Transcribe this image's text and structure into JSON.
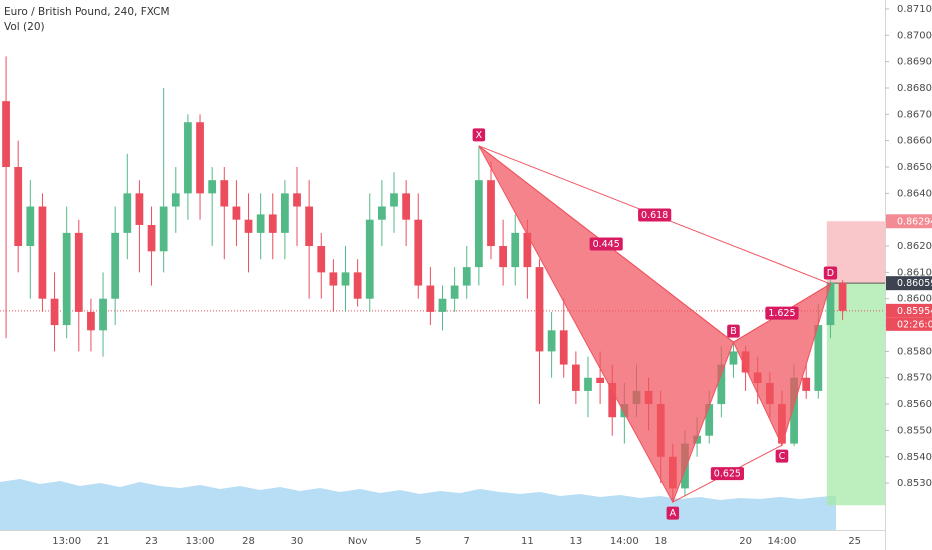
{
  "chart_data": {
    "type": "candlestick",
    "title": "Euro / British Pound, 240, FXCM",
    "subtitle": "Vol (20)",
    "categories": [
      null,
      null,
      null,
      null,
      null,
      "13:00",
      null,
      null,
      "21",
      null,
      null,
      null,
      "23",
      null,
      null,
      null,
      "13:00",
      null,
      null,
      null,
      "28",
      null,
      null,
      null,
      "30",
      null,
      null,
      null,
      null,
      "Nov",
      null,
      null,
      null,
      null,
      "5",
      null,
      null,
      null,
      "7",
      null,
      null,
      null,
      null,
      "11",
      null,
      null,
      null,
      "13",
      null,
      null,
      null,
      "14:00",
      null,
      null,
      "18",
      null,
      null,
      null,
      null,
      null,
      null,
      "20",
      null,
      null,
      "14:00",
      null,
      null,
      null,
      null,
      null,
      "25",
      null,
      null
    ],
    "open": [
      0.8675,
      0.865,
      0.862,
      0.8635,
      0.86,
      0.859,
      0.8625,
      0.8595,
      0.8588,
      0.86,
      0.8625,
      0.864,
      0.8628,
      0.8618,
      0.8635,
      0.864,
      0.8667,
      0.864,
      0.8645,
      0.8635,
      0.863,
      0.8625,
      0.8632,
      0.8625,
      0.864,
      0.8635,
      0.862,
      0.861,
      0.8605,
      0.861,
      0.86,
      0.863,
      0.8635,
      0.864,
      0.863,
      0.8605,
      0.8595,
      0.86,
      0.8605,
      0.8612,
      0.8645,
      0.862,
      0.8612,
      0.8625,
      0.8612,
      0.858,
      0.8588,
      0.8575,
      0.8565,
      0.857,
      0.8568,
      0.8555,
      0.856,
      0.8565,
      0.856,
      0.854,
      0.8528,
      0.8545,
      0.8548,
      0.856,
      0.8575,
      0.858,
      0.8572,
      0.8568,
      0.856,
      0.8545,
      0.857,
      0.8565,
      0.859,
      0.8606,
      null,
      null,
      null
    ],
    "high": [
      0.8692,
      0.866,
      0.8645,
      0.864,
      0.861,
      0.8635,
      0.863,
      0.86,
      0.861,
      0.8635,
      0.8655,
      0.8645,
      0.8635,
      0.868,
      0.865,
      0.867,
      0.867,
      0.865,
      0.865,
      0.8645,
      0.864,
      0.864,
      0.864,
      0.8645,
      0.865,
      0.8645,
      0.8625,
      0.8615,
      0.862,
      0.8615,
      0.864,
      0.8645,
      0.8648,
      0.8645,
      0.864,
      0.8612,
      0.8605,
      0.8612,
      0.862,
      0.8658,
      0.8652,
      0.863,
      0.8632,
      0.863,
      0.8615,
      0.8595,
      0.86,
      0.858,
      0.8578,
      0.858,
      0.8575,
      0.8568,
      0.8575,
      0.857,
      0.8565,
      0.8545,
      0.855,
      0.8555,
      0.8565,
      0.8582,
      0.8584,
      0.8582,
      0.8578,
      0.8572,
      0.8565,
      0.8575,
      0.8575,
      0.8598,
      0.8607,
      0.8607,
      null,
      null,
      null
    ],
    "low": [
      0.8585,
      0.861,
      0.86,
      0.8595,
      0.858,
      0.8585,
      0.858,
      0.858,
      0.8578,
      0.859,
      0.8615,
      0.861,
      0.8605,
      0.861,
      0.8625,
      0.863,
      0.863,
      0.862,
      0.8615,
      0.862,
      0.861,
      0.8615,
      0.8615,
      0.8615,
      0.862,
      0.86,
      0.86,
      0.8595,
      0.8595,
      0.8597,
      0.8595,
      0.862,
      0.8625,
      0.862,
      0.86,
      0.859,
      0.8588,
      0.8595,
      0.86,
      0.8605,
      0.8615,
      0.8605,
      0.8605,
      0.86,
      0.856,
      0.857,
      0.857,
      0.856,
      0.8555,
      0.856,
      0.8548,
      0.8545,
      0.8555,
      0.855,
      0.853,
      0.8523,
      0.8525,
      0.854,
      0.8545,
      0.8555,
      0.857,
      0.8565,
      0.856,
      0.8555,
      0.8544,
      0.8544,
      0.8562,
      0.8562,
      0.8585,
      0.8592,
      null,
      null,
      null
    ],
    "close": [
      0.865,
      0.862,
      0.8635,
      0.86,
      0.859,
      0.8625,
      0.8595,
      0.8588,
      0.86,
      0.8625,
      0.864,
      0.8628,
      0.8618,
      0.8635,
      0.864,
      0.8667,
      0.864,
      0.8645,
      0.8635,
      0.863,
      0.8625,
      0.8632,
      0.8625,
      0.864,
      0.8635,
      0.862,
      0.861,
      0.8605,
      0.861,
      0.86,
      0.863,
      0.8635,
      0.864,
      0.863,
      0.8605,
      0.8595,
      0.86,
      0.8605,
      0.8612,
      0.8645,
      0.862,
      0.8612,
      0.8625,
      0.8612,
      0.858,
      0.8588,
      0.8575,
      0.8565,
      0.857,
      0.8568,
      0.8555,
      0.856,
      0.8565,
      0.856,
      0.854,
      0.8528,
      0.8545,
      0.8548,
      0.856,
      0.8575,
      0.858,
      0.8572,
      0.8568,
      0.856,
      0.8545,
      0.857,
      0.8565,
      0.859,
      0.8606,
      0.85954,
      null,
      null,
      null
    ],
    "up_color": "#53b987",
    "down_color": "#eb4d5c",
    "ylim": [
      0.85122,
      0.87134
    ],
    "yticks": [
      {
        "value": 0.853,
        "label": "0.85300"
      },
      {
        "value": 0.854,
        "label": "0.85400"
      },
      {
        "value": 0.855,
        "label": "0.85500"
      },
      {
        "value": 0.856,
        "label": "0.85600"
      },
      {
        "value": 0.857,
        "label": "0.85700"
      },
      {
        "value": 0.858,
        "label": "0.85800"
      },
      {
        "value": 0.859,
        "label": "0.85900"
      },
      {
        "value": 0.86,
        "label": "0.86000"
      },
      {
        "value": 0.861,
        "label": "0.86100"
      },
      {
        "value": 0.862,
        "label": "0.86200"
      },
      {
        "value": 0.863,
        "label": "0.86300"
      },
      {
        "value": 0.864,
        "label": "0.86400"
      },
      {
        "value": 0.865,
        "label": "0.86500"
      },
      {
        "value": 0.866,
        "label": "0.86600"
      },
      {
        "value": 0.867,
        "label": "0.86700"
      },
      {
        "value": 0.868,
        "label": "0.86800"
      },
      {
        "value": 0.869,
        "label": "0.86900"
      },
      {
        "value": 0.87,
        "label": "0.87000"
      },
      {
        "value": 0.871,
        "label": "0.87100"
      }
    ],
    "pattern": {
      "color": "#f0535e",
      "points": [
        {
          "label": "X",
          "index": 39,
          "price": 0.8658
        },
        {
          "label": "A",
          "index": 55,
          "price": 0.85228
        },
        {
          "label": "B",
          "index": 60,
          "price": 0.85835
        },
        {
          "label": "C",
          "index": 64,
          "price": 0.85444
        },
        {
          "label": "D",
          "index": 68,
          "price": 0.86056
        }
      ],
      "ratios": [
        {
          "from": "X",
          "to": "D",
          "ratio": 0.618
        },
        {
          "from": "X",
          "to": "B",
          "ratio": 0.445
        },
        {
          "from": "B",
          "to": "D",
          "ratio": 1.625
        },
        {
          "from": "A",
          "to": "C",
          "ratio": 0.625
        }
      ]
    },
    "position": {
      "index": 68,
      "target": 0.86294,
      "entry": 0.86059,
      "stop": 0.85216
    },
    "last_price": 0.85954,
    "countdown": "02:26:06"
  }
}
